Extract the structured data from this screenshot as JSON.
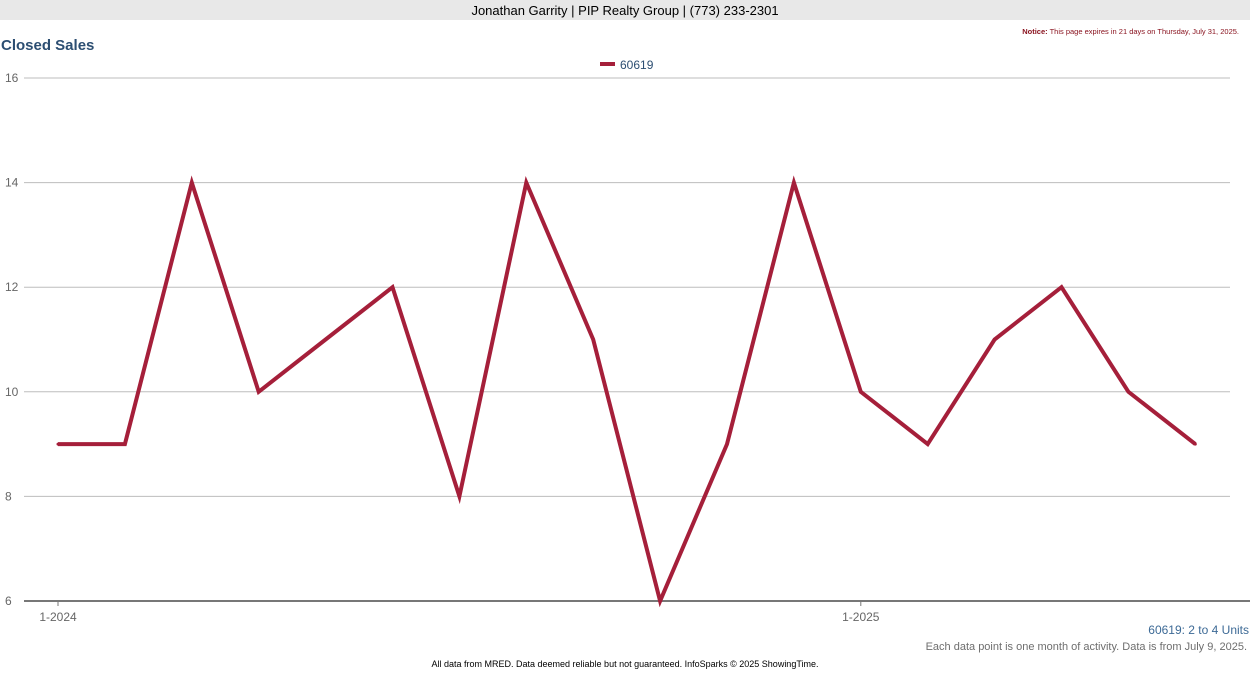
{
  "header": {
    "agent_line": "Jonathan Garrity | PIP Realty Group | (773) 233-2301"
  },
  "notice": {
    "label": "Notice:",
    "text": "This page expires in 21 days on Thursday, July 31, 2025."
  },
  "chart_data": {
    "type": "line",
    "title": "Closed Sales",
    "x": [
      "1-2024",
      "2-2024",
      "3-2024",
      "4-2024",
      "5-2024",
      "6-2024",
      "7-2024",
      "8-2024",
      "9-2024",
      "10-2024",
      "11-2024",
      "12-2024",
      "1-2025",
      "2-2025",
      "3-2025",
      "4-2025",
      "5-2025",
      "6-2025"
    ],
    "x_tick_labels": [
      "1-2024",
      "1-2025"
    ],
    "series": [
      {
        "name": "60619",
        "color": "#a51f3a",
        "values": [
          9,
          9,
          14,
          10,
          11,
          12,
          8,
          14,
          11,
          6,
          9,
          14,
          10,
          9,
          11,
          12,
          10,
          9
        ]
      }
    ],
    "ylim": [
      6,
      16
    ],
    "yticks": [
      6,
      8,
      10,
      12,
      14,
      16
    ],
    "grid": true,
    "legend": "top-center"
  },
  "notes": {
    "series_note": "60619: 2 to 4 Units",
    "data_note": "Each data point is one month of activity. Data is from July 9, 2025."
  },
  "footer": {
    "text": "All data from MRED. Data deemed reliable but not guaranteed. InfoSparks © 2025 ShowingTime."
  }
}
